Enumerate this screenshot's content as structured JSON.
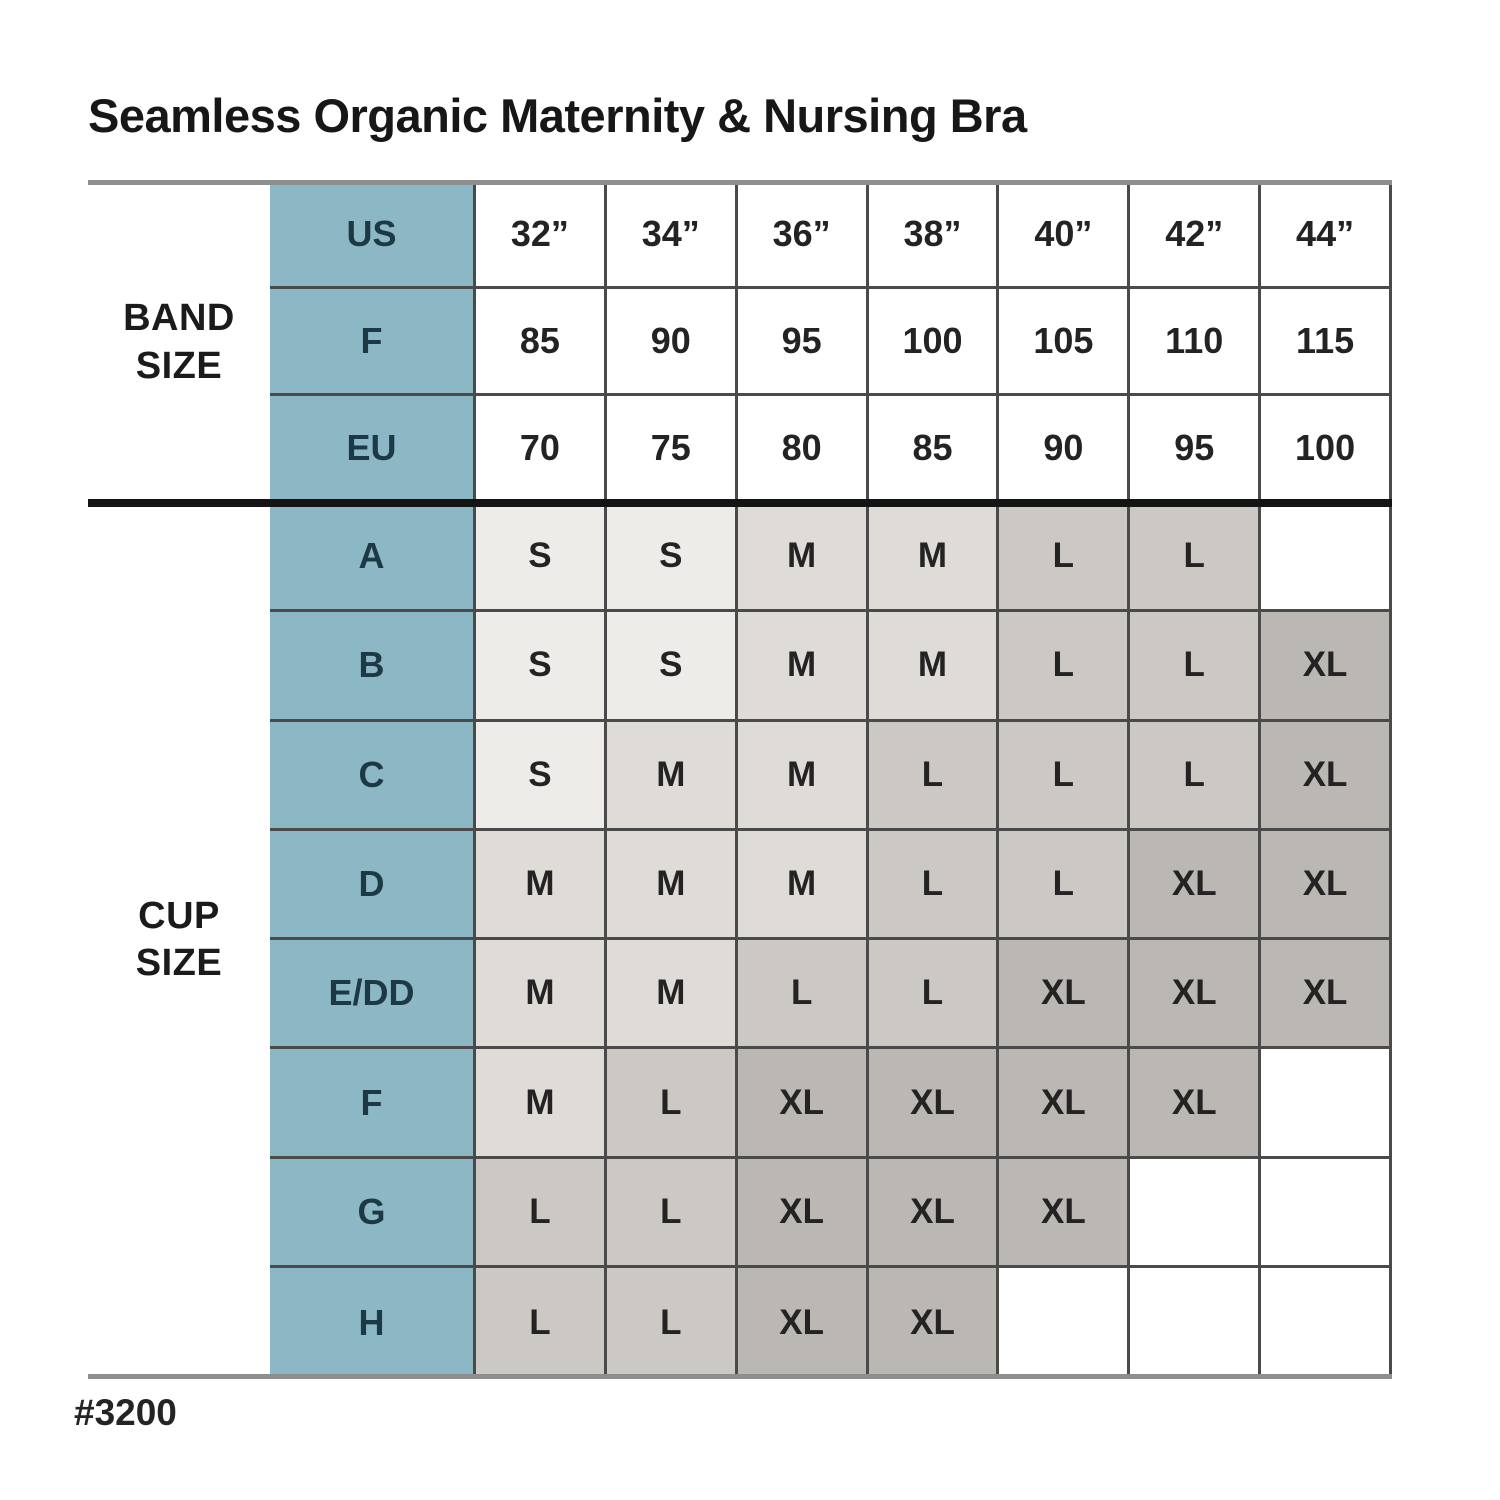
{
  "title": "Seamless Organic Maternity & Nursing Bra",
  "footer_item_number": "#3200",
  "table": {
    "band_group_label": "BAND\nSIZE",
    "cup_group_label": "CUP\nSIZE",
    "band_rows": [
      {
        "label": "US",
        "values": [
          "32”",
          "34”",
          "36”",
          "38”",
          "40”",
          "42”",
          "44”"
        ]
      },
      {
        "label": "F",
        "values": [
          "85",
          "90",
          "95",
          "100",
          "105",
          "110",
          "115"
        ]
      },
      {
        "label": "EU",
        "values": [
          "70",
          "75",
          "80",
          "85",
          "90",
          "95",
          "100"
        ]
      }
    ],
    "cup_rows": [
      {
        "label": "A",
        "values": [
          "S",
          "S",
          "M",
          "M",
          "L",
          "L",
          ""
        ]
      },
      {
        "label": "B",
        "values": [
          "S",
          "S",
          "M",
          "M",
          "L",
          "L",
          "XL"
        ]
      },
      {
        "label": "C",
        "values": [
          "S",
          "M",
          "M",
          "L",
          "L",
          "L",
          "XL"
        ]
      },
      {
        "label": "D",
        "values": [
          "M",
          "M",
          "M",
          "L",
          "L",
          "XL",
          "XL"
        ]
      },
      {
        "label": "E/DD",
        "values": [
          "M",
          "M",
          "L",
          "L",
          "XL",
          "XL",
          "XL"
        ]
      },
      {
        "label": "F",
        "values": [
          "M",
          "L",
          "XL",
          "XL",
          "XL",
          "XL",
          ""
        ]
      },
      {
        "label": "G",
        "values": [
          "L",
          "L",
          "XL",
          "XL",
          "XL",
          "",
          ""
        ]
      },
      {
        "label": "H",
        "values": [
          "L",
          "L",
          "XL",
          "XL",
          "",
          "",
          ""
        ]
      }
    ]
  },
  "colors": {
    "header_teal": "#8cb8c6",
    "header_text": "#1d3944",
    "size_s_fill": "#eeece8",
    "size_m_fill": "#dfdcd7",
    "size_l_fill": "#ccc8c3",
    "size_xl_fill": "#bbb7b2",
    "grid_line": "#4a4a4a",
    "outer_rule_gray": "#8e8e8e",
    "section_separator_black": "#141414"
  },
  "chart_data": {
    "type": "table",
    "title": "Seamless Organic Maternity & Nursing Bra",
    "item_number": "#3200",
    "band_size": {
      "US": [
        "32”",
        "34”",
        "36”",
        "38”",
        "40”",
        "42”",
        "44”"
      ],
      "F": [
        85,
        90,
        95,
        100,
        105,
        110,
        115
      ],
      "EU": [
        70,
        75,
        80,
        85,
        90,
        95,
        100
      ]
    },
    "cup_size_to_recommended_size_by_band": {
      "A": [
        "S",
        "S",
        "M",
        "M",
        "L",
        "L",
        null
      ],
      "B": [
        "S",
        "S",
        "M",
        "M",
        "L",
        "L",
        "XL"
      ],
      "C": [
        "S",
        "M",
        "M",
        "L",
        "L",
        "L",
        "XL"
      ],
      "D": [
        "M",
        "M",
        "M",
        "L",
        "L",
        "XL",
        "XL"
      ],
      "E/DD": [
        "M",
        "M",
        "L",
        "L",
        "XL",
        "XL",
        "XL"
      ],
      "F": [
        "M",
        "L",
        "XL",
        "XL",
        "XL",
        "XL",
        null
      ],
      "G": [
        "L",
        "L",
        "XL",
        "XL",
        "XL",
        null,
        null
      ],
      "H": [
        "L",
        "L",
        "XL",
        "XL",
        null,
        null,
        null
      ]
    },
    "legend_shading_by_size": {
      "S": "#eeece8",
      "M": "#dfdcd7",
      "L": "#ccc8c3",
      "XL": "#bbb7b2"
    }
  }
}
